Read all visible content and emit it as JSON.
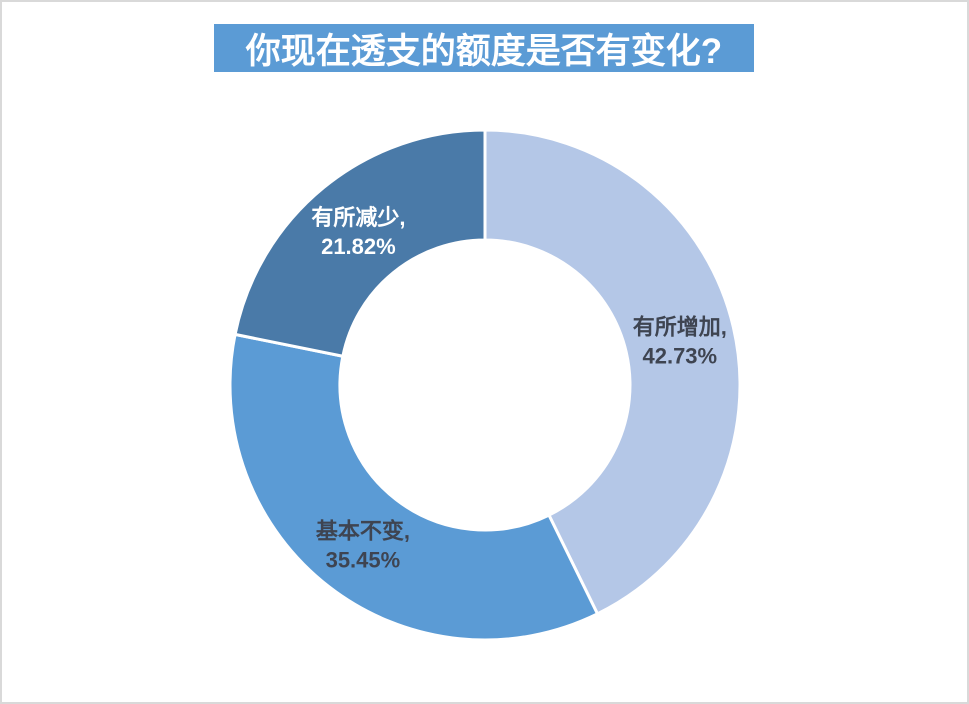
{
  "chart_data": {
    "type": "pie",
    "subtype": "donut",
    "title": "你现在透支的额度是否有变化?",
    "title_bg_color": "#5B9BD5",
    "title_text_color": "#FFFFFF",
    "legend": "none",
    "start_angle_deg": 0,
    "direction": "clockwise",
    "hole_ratio": 0.57,
    "gap_color": "#FFFFFF",
    "categories": [
      "有所增加",
      "基本不变",
      "有所减少"
    ],
    "values": [
      42.73,
      35.45,
      21.82
    ],
    "segments": [
      {
        "category": "有所增加",
        "value": 42.73,
        "label_line1": "有所增加,",
        "label_line2": "42.73%",
        "color": "#B4C7E7",
        "label_color": "#3E4451"
      },
      {
        "category": "基本不变",
        "value": 35.45,
        "label_line1": "基本不变,",
        "label_line2": "35.45%",
        "color": "#5B9BD5",
        "label_color": "#3E4451"
      },
      {
        "category": "有所减少",
        "value": 21.82,
        "label_line1": "有所减少,",
        "label_line2": "21.82%",
        "color": "#4A7AA8",
        "label_color": "#FFFFFF"
      }
    ]
  }
}
